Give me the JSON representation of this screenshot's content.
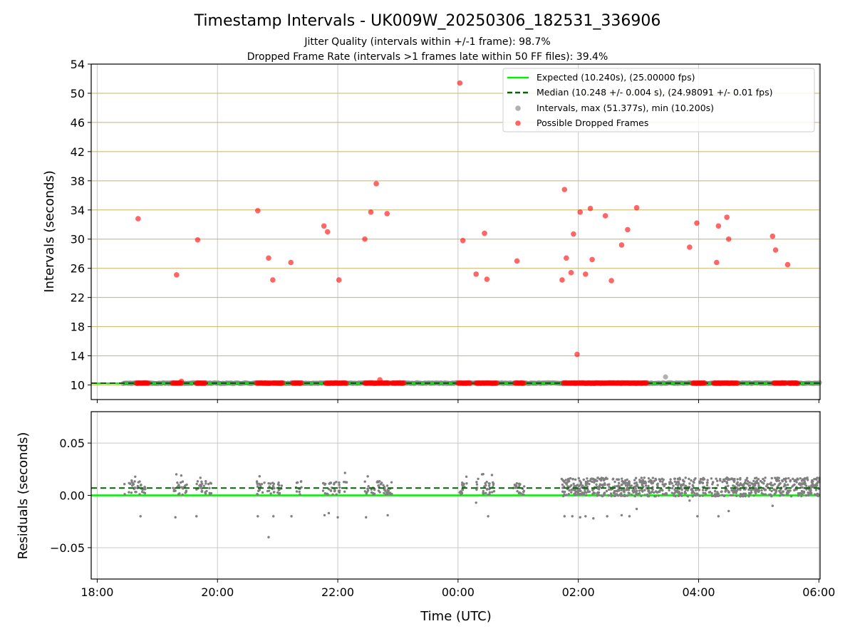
{
  "figure": {
    "title": "Timestamp Intervals - UK009W_20250306_182531_336906",
    "subtitle_1": "Jitter Quality (intervals within +/-1 frame): 98.7%",
    "subtitle_2": "Dropped Frame Rate (intervals >1 frames late within 50 FF files): 39.4%"
  },
  "colors": {
    "expected": "#00ee00",
    "median": "#006400",
    "intervals": "#9e9e9e",
    "dropped": "#ff0000",
    "hgrid_top": "#c8b464",
    "grid": "#c8c8c8"
  },
  "chart_data": [
    {
      "type": "scatter",
      "ylabel": "Intervals (seconds)",
      "ylim": [
        8,
        54
      ],
      "yticks": [
        "10",
        "14",
        "18",
        "22",
        "26",
        "30",
        "34",
        "38",
        "42",
        "46",
        "50",
        "54"
      ],
      "xlim_hours": [
        17.9,
        30.02
      ],
      "grid": true,
      "legend_position": "top-right",
      "legend": [
        "Expected (10.240s), (25.00000 fps)",
        "Median (10.248 +/- 0.004 s), (24.98091 +/- 0.01 fps)",
        "Intervals, max (51.377s), min (10.200s)",
        "Possible Dropped Frames"
      ],
      "expected_value": 10.24,
      "median_value": 10.248,
      "intervals_band": {
        "x_start_hours": 18.43,
        "x_end_hours": 30.02,
        "y": 10.25
      },
      "interval_outliers": [
        [
          27.45,
          11.1
        ]
      ],
      "dropped_clusters": [
        [
          18.65,
          18.85,
          10.25
        ],
        [
          19.25,
          19.4,
          10.25
        ],
        [
          19.65,
          19.8,
          10.25
        ],
        [
          20.65,
          20.9,
          10.25
        ],
        [
          20.92,
          21.1,
          10.25
        ],
        [
          21.25,
          21.4,
          10.25
        ],
        [
          21.8,
          22.15,
          10.25
        ],
        [
          22.45,
          22.85,
          10.25
        ],
        [
          22.9,
          23.1,
          10.25
        ],
        [
          24.0,
          24.2,
          10.25
        ],
        [
          24.3,
          24.65,
          10.25
        ],
        [
          24.95,
          25.1,
          10.25
        ],
        [
          25.75,
          26.45,
          10.25
        ],
        [
          26.45,
          27.15,
          10.25
        ],
        [
          27.9,
          28.1,
          10.25
        ],
        [
          28.25,
          28.65,
          10.25
        ],
        [
          29.25,
          29.45,
          10.25
        ],
        [
          29.5,
          29.65,
          10.25
        ]
      ],
      "dropped_points": [
        [
          18.68,
          32.8
        ],
        [
          19.32,
          25.1
        ],
        [
          19.4,
          10.5
        ],
        [
          19.67,
          29.9
        ],
        [
          20.67,
          33.9
        ],
        [
          20.85,
          27.4
        ],
        [
          20.92,
          24.4
        ],
        [
          21.22,
          26.8
        ],
        [
          21.77,
          31.8
        ],
        [
          21.83,
          31.0
        ],
        [
          22.02,
          24.4
        ],
        [
          22.45,
          30.0
        ],
        [
          22.55,
          33.7
        ],
        [
          22.64,
          37.6
        ],
        [
          22.7,
          10.7
        ],
        [
          22.82,
          33.5
        ],
        [
          24.03,
          51.4
        ],
        [
          24.08,
          29.8
        ],
        [
          24.3,
          25.2
        ],
        [
          24.44,
          30.8
        ],
        [
          24.48,
          24.5
        ],
        [
          24.98,
          27.0
        ],
        [
          25.73,
          24.4
        ],
        [
          25.77,
          36.8
        ],
        [
          25.8,
          27.4
        ],
        [
          25.88,
          25.4
        ],
        [
          25.92,
          30.7
        ],
        [
          25.98,
          14.2
        ],
        [
          26.03,
          33.7
        ],
        [
          26.12,
          25.2
        ],
        [
          26.2,
          34.2
        ],
        [
          26.23,
          27.2
        ],
        [
          26.45,
          33.2
        ],
        [
          26.55,
          24.3
        ],
        [
          26.72,
          29.2
        ],
        [
          26.82,
          31.3
        ],
        [
          26.97,
          34.3
        ],
        [
          27.85,
          28.9
        ],
        [
          27.97,
          32.2
        ],
        [
          28.3,
          26.8
        ],
        [
          28.33,
          31.8
        ],
        [
          28.47,
          33.0
        ],
        [
          28.5,
          30.0
        ],
        [
          29.23,
          30.4
        ],
        [
          29.28,
          28.5
        ],
        [
          29.48,
          26.5
        ]
      ]
    },
    {
      "type": "scatter",
      "ylabel": "Residuals (seconds)",
      "xlabel": "Time (UTC)",
      "ylim": [
        -0.08,
        0.08
      ],
      "yticks": [
        "−0.05",
        "0.00",
        "0.05"
      ],
      "ytick_values": [
        -0.05,
        0.0,
        0.05
      ],
      "xticks": [
        "18:00",
        "20:00",
        "22:00",
        "00:00",
        "02:00",
        "04:00",
        "06:00"
      ],
      "xtick_hours": [
        18,
        20,
        22,
        24,
        26,
        28,
        30
      ],
      "expected_value": 0.0,
      "median_value": 0.007,
      "sparse_clusters": [
        [
          18.45,
          18.8
        ],
        [
          19.25,
          19.5
        ],
        [
          19.65,
          19.9
        ],
        [
          20.65,
          20.95
        ],
        [
          21.0,
          21.1
        ],
        [
          21.3,
          21.4
        ],
        [
          21.75,
          22.05
        ],
        [
          22.1,
          22.15
        ],
        [
          22.45,
          22.9
        ],
        [
          24.0,
          24.15
        ],
        [
          24.3,
          24.6
        ],
        [
          24.9,
          25.1
        ]
      ],
      "dense_range": [
        25.72,
        30.02
      ],
      "residual_outliers": [
        [
          18.72,
          -0.02
        ],
        [
          19.3,
          -0.021
        ],
        [
          19.65,
          -0.02
        ],
        [
          20.67,
          -0.02
        ],
        [
          20.85,
          -0.04
        ],
        [
          20.93,
          -0.02
        ],
        [
          21.23,
          -0.02
        ],
        [
          21.78,
          -0.019
        ],
        [
          21.85,
          -0.017
        ],
        [
          22.0,
          -0.021
        ],
        [
          22.47,
          -0.021
        ],
        [
          22.83,
          -0.019
        ],
        [
          24.3,
          -0.007
        ],
        [
          24.5,
          -0.02
        ],
        [
          25.77,
          -0.02
        ],
        [
          25.9,
          -0.02
        ],
        [
          26.03,
          -0.021
        ],
        [
          26.12,
          -0.02
        ],
        [
          26.25,
          -0.022
        ],
        [
          26.48,
          -0.02
        ],
        [
          26.72,
          -0.019
        ],
        [
          26.85,
          -0.02
        ],
        [
          26.97,
          -0.013
        ],
        [
          27.85,
          -0.005
        ],
        [
          27.98,
          -0.02
        ],
        [
          28.33,
          -0.02
        ],
        [
          28.5,
          -0.015
        ],
        [
          29.23,
          -0.01
        ]
      ]
    }
  ]
}
